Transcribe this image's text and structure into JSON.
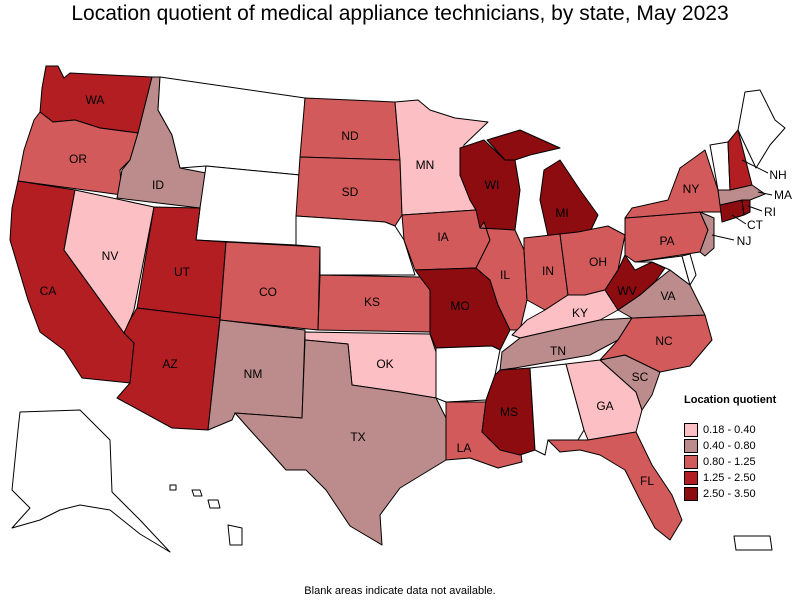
{
  "title": "Location quotient of medical appliance technicians, by state, May 2023",
  "note": "Blank areas indicate data not available.",
  "legend": {
    "title": "Location quotient",
    "items": [
      {
        "label": "0.18 - 0.40",
        "color": "#fcbfc3"
      },
      {
        "label": "0.40 - 0.80",
        "color": "#bc8c8c"
      },
      {
        "label": "0.80 - 1.25",
        "color": "#d35a5a"
      },
      {
        "label": "1.25 - 2.50",
        "color": "#b21e22"
      },
      {
        "label": "2.50 - 3.50",
        "color": "#8c0c10"
      }
    ]
  },
  "no_data_color": "#ffffff",
  "states": {
    "WA": {
      "label": "WA",
      "class": 3
    },
    "OR": {
      "label": "OR",
      "class": 2
    },
    "CA": {
      "label": "CA",
      "class": 3
    },
    "ID": {
      "label": "ID",
      "class": 1
    },
    "NV": {
      "label": "NV",
      "class": 0
    },
    "MT": {
      "label": "",
      "class": null
    },
    "WY": {
      "label": "",
      "class": null
    },
    "UT": {
      "label": "UT",
      "class": 3
    },
    "AZ": {
      "label": "AZ",
      "class": 3
    },
    "CO": {
      "label": "CO",
      "class": 2
    },
    "NM": {
      "label": "NM",
      "class": 1
    },
    "ND": {
      "label": "ND",
      "class": 2
    },
    "SD": {
      "label": "SD",
      "class": 2
    },
    "NE": {
      "label": "",
      "class": null
    },
    "KS": {
      "label": "KS",
      "class": 2
    },
    "OK": {
      "label": "OK",
      "class": 0
    },
    "TX": {
      "label": "TX",
      "class": 1
    },
    "MN": {
      "label": "MN",
      "class": 0
    },
    "IA": {
      "label": "IA",
      "class": 2
    },
    "MO": {
      "label": "MO",
      "class": 4
    },
    "AR": {
      "label": "",
      "class": null
    },
    "LA": {
      "label": "LA",
      "class": 2
    },
    "WI": {
      "label": "WI",
      "class": 4
    },
    "IL": {
      "label": "IL",
      "class": 2
    },
    "MI": {
      "label": "MI",
      "class": 4
    },
    "IN": {
      "label": "IN",
      "class": 2
    },
    "OH": {
      "label": "OH",
      "class": 2
    },
    "KY": {
      "label": "KY",
      "class": 0
    },
    "TN": {
      "label": "TN",
      "class": 1
    },
    "MS": {
      "label": "MS",
      "class": 4
    },
    "AL": {
      "label": "",
      "class": null
    },
    "GA": {
      "label": "GA",
      "class": 0
    },
    "FL": {
      "label": "FL",
      "class": 2
    },
    "SC": {
      "label": "SC",
      "class": 1
    },
    "NC": {
      "label": "NC",
      "class": 2
    },
    "VA": {
      "label": "VA",
      "class": 1
    },
    "WV": {
      "label": "WV",
      "class": 4
    },
    "PA": {
      "label": "PA",
      "class": 2
    },
    "NY": {
      "label": "NY",
      "class": 2
    },
    "NJ": {
      "label": "NJ",
      "class": 1
    },
    "DE": {
      "label": "",
      "class": null
    },
    "MD": {
      "label": "",
      "class": null
    },
    "CT": {
      "label": "CT",
      "class": 4
    },
    "RI": {
      "label": "RI",
      "class": 4
    },
    "MA": {
      "label": "MA",
      "class": 1
    },
    "VT": {
      "label": "",
      "class": null
    },
    "NH": {
      "label": "NH",
      "class": 3
    },
    "ME": {
      "label": "",
      "class": null
    },
    "AK": {
      "label": "",
      "class": null
    },
    "HI": {
      "label": "",
      "class": null
    },
    "PR": {
      "label": "",
      "class": null
    }
  }
}
